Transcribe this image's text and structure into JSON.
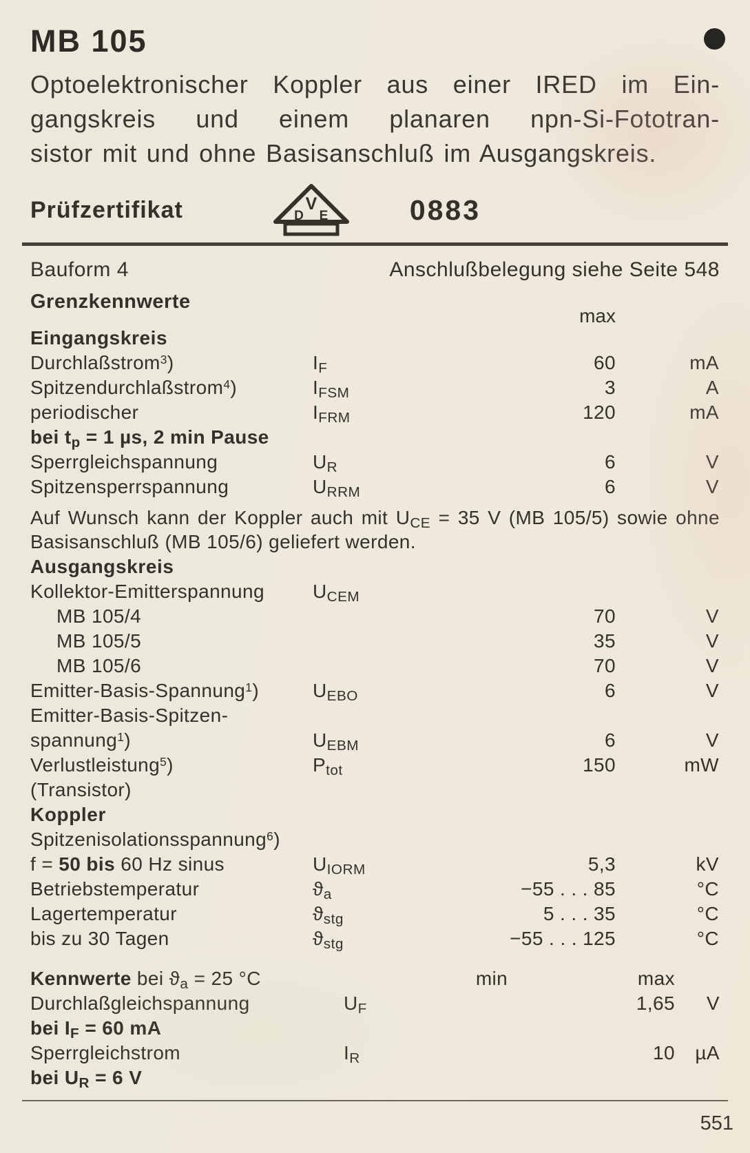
{
  "page": {
    "title": "MB 105",
    "description_lines": [
      "Optoelektronischer Koppler aus einer IRED im Ein-",
      "gangskreis und einem planaren npn-Si-Fototran-",
      "sistor mit und ohne Basisanschluß im Ausgangskreis."
    ],
    "page_number": "551"
  },
  "icons": {
    "corner_marker": "filled-circle",
    "vde_logo": "vde-triangle-icon"
  },
  "cert": {
    "label": "Prüfzertifikat",
    "number": "0883",
    "logo_letters": {
      "top": "V",
      "bottom_left": "D",
      "bottom_right": "E"
    }
  },
  "meta": {
    "bauform": "Bauform 4",
    "pinout": "Anschlußbelegung siehe Seite 548"
  },
  "limits": {
    "title": "Grenzkennwerte",
    "col_max": "max",
    "rows": [
      {
        "kind": "section",
        "label": "Eingangskreis"
      },
      {
        "kind": "row",
        "label": "Durchlaßstrom^3^)",
        "symbol": "I~F~",
        "value": "60",
        "unit": "mA"
      },
      {
        "kind": "row",
        "label": "Spitzendurchlaßstrom^4^)",
        "symbol": "I~FSM~",
        "value": "3",
        "unit": "A"
      },
      {
        "kind": "row",
        "label": "periodischer",
        "symbol": "I~FRM~",
        "value": "120",
        "unit": "mA"
      },
      {
        "kind": "cont",
        "label": "*bei t~p~ = 1 µs, 2 min Pause*"
      },
      {
        "kind": "row",
        "label": "Sperrgleichspannung",
        "symbol": "U~R~",
        "value": "6",
        "unit": "V"
      },
      {
        "kind": "row",
        "label": "Spitzensperrspannung",
        "symbol": "U~RRM~",
        "value": "6",
        "unit": "V"
      },
      {
        "kind": "note",
        "lines": [
          "Auf Wunsch kann der Koppler auch mit U~CE~ = 35 V (MB 105/5) sowie ohne",
          "Basisanschluß (MB 105/6) geliefert werden."
        ]
      },
      {
        "kind": "section",
        "label": "Ausgangskreis"
      },
      {
        "kind": "row",
        "label": "Kollektor-Emitterspannung",
        "symbol": "U~CEM~",
        "value": "",
        "unit": ""
      },
      {
        "kind": "row",
        "indent": true,
        "label": "MB 105/4",
        "symbol": "",
        "value": "70",
        "unit": "V"
      },
      {
        "kind": "row",
        "indent": true,
        "label": "MB 105/5",
        "symbol": "",
        "value": "35",
        "unit": "V"
      },
      {
        "kind": "row",
        "indent": true,
        "label": "MB 105/6",
        "symbol": "",
        "value": "70",
        "unit": "V"
      },
      {
        "kind": "row",
        "label": "Emitter-Basis-Spannung^1^)",
        "symbol": "U~EBO~",
        "value": "6",
        "unit": "V"
      },
      {
        "kind": "cont",
        "label": "Emitter-Basis-Spitzen-"
      },
      {
        "kind": "row",
        "label": "spannung^1^)",
        "symbol": "U~EBM~",
        "value": "6",
        "unit": "V"
      },
      {
        "kind": "row",
        "label": "Verlustleistung^5^)",
        "symbol": "P~tot~",
        "value": "150",
        "unit": "mW"
      },
      {
        "kind": "cont",
        "label": "(Transistor)"
      },
      {
        "kind": "section",
        "label": "Koppler"
      },
      {
        "kind": "cont",
        "label": "Spitzenisolationsspannung^6^)"
      },
      {
        "kind": "row",
        "label": "f = *50 bis* 60 Hz sinus",
        "symbol": "U~IORM~",
        "value": "5,3",
        "unit": "kV"
      },
      {
        "kind": "row",
        "label": "Betriebstemperatur",
        "symbol": "ϑ~a~",
        "value": "−55 . . . 85",
        "unit": "°C"
      },
      {
        "kind": "row",
        "label": "Lagertemperatur",
        "symbol": "ϑ~stg~",
        "value": "5 . . . 35",
        "unit": "°C"
      },
      {
        "kind": "row",
        "label": "bis zu 30 Tagen",
        "symbol": "ϑ~stg~",
        "value": "−55 . . . 125",
        "unit": "°C"
      }
    ]
  },
  "kennwerte": {
    "title": "*Kennwerte* bei ϑ~a~ = 25 °C",
    "col_min": "min",
    "col_max": "max",
    "rows": [
      {
        "kind": "row",
        "label": "Durchlaßgleichspannung",
        "symbol": "U~F~",
        "min": "",
        "max": "1,65",
        "unit": "V"
      },
      {
        "kind": "cont",
        "label": "*bei I~F~ = 60 mA*"
      },
      {
        "kind": "row",
        "label": "Sperrgleichstrom",
        "symbol": "I~R~",
        "min": "",
        "max": "10",
        "unit": "µA"
      },
      {
        "kind": "cont",
        "label": "*bei U~R~ = 6 V*"
      }
    ]
  }
}
